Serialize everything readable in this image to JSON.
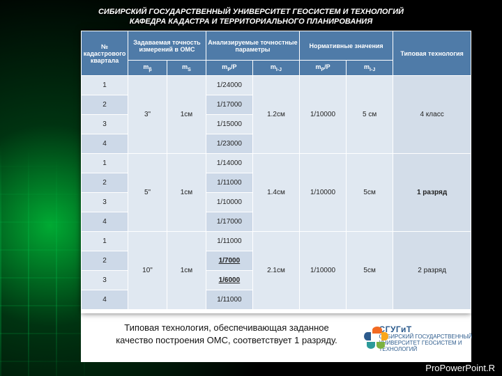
{
  "header": {
    "line1": "СИБИРСКИЙ ГОСУДАРСТВЕННЫЙ УНИВЕРСИТЕТ ГЕОСИСТЕМ И ТЕХНОЛОГИЙ",
    "line2": "КАФЕДРА КАДАСТРА И ТЕРРИТОРИАЛЬНОГО ПЛАНИРОВАНИЯ"
  },
  "table": {
    "head": {
      "c1": "№ кадастрового квартала",
      "c2": "Задаваемая точность измерений в ОМС",
      "c3": "Анализируемые точностные параметры",
      "c4": "Нормативные значения",
      "c5": "Типовая технология",
      "s1": "mβ",
      "s2": "mS",
      "s3": "mP/P",
      "s4": "mI-J",
      "s5": "mP/P",
      "s6": "mI-J"
    },
    "groups": [
      {
        "mb": "3\"",
        "ms": "1см",
        "mij": "1.2см",
        "np": "1/10000",
        "nij": "5 см",
        "tech": "4 класс",
        "tech_bold": false,
        "rows": [
          {
            "n": "1",
            "mp": "1/24000",
            "bold": false
          },
          {
            "n": "2",
            "mp": "1/17000",
            "bold": false
          },
          {
            "n": "3",
            "mp": "1/15000",
            "bold": false
          },
          {
            "n": "4",
            "mp": "1/23000",
            "bold": false
          }
        ]
      },
      {
        "mb": "5\"",
        "ms": "1см",
        "mij": "1.4см",
        "np": "1/10000",
        "nij": "5см",
        "tech": "1 разряд",
        "tech_bold": true,
        "rows": [
          {
            "n": "1",
            "mp": "1/14000",
            "bold": false
          },
          {
            "n": "2",
            "mp": "1/11000",
            "bold": false
          },
          {
            "n": "3",
            "mp": "1/10000",
            "bold": false
          },
          {
            "n": "4",
            "mp": "1/17000",
            "bold": false
          }
        ]
      },
      {
        "mb": "10\"",
        "ms": "1см",
        "mij": "2.1см",
        "np": "1/10000",
        "nij": "5см",
        "tech": "2 разряд",
        "tech_bold": false,
        "rows": [
          {
            "n": "1",
            "mp": "1/11000",
            "bold": false
          },
          {
            "n": "2",
            "mp": "1/7000",
            "bold": true
          },
          {
            "n": "3",
            "mp": "1/6000",
            "bold": true
          },
          {
            "n": "4",
            "mp": "1/11000",
            "bold": false
          }
        ]
      }
    ],
    "col_widths": [
      "12%",
      "10%",
      "10%",
      "12%",
      "12%",
      "12%",
      "12%",
      "20%"
    ],
    "colors": {
      "header_bg": "#4f7ba8",
      "odd_bg": "#e0e8f1",
      "even_bg": "#cdd9e8",
      "border": "#ffffff",
      "text": "#222222"
    }
  },
  "caption": "Типовая технология, обеспечивающая заданное качество построения ОМС, соответствует 1 разряду.",
  "logo": {
    "abbr": "СГУГиТ",
    "full": "СИБИРСКИЙ ГОСУДАРСТВЕННЫЙ УНИВЕРСИТЕТ ГЕОСИСТЕМ И ТЕХНОЛОГИЙ",
    "colors": [
      "#f26a21",
      "#f9a61a",
      "#7bb241",
      "#2c9a9a",
      "#2c5b8d"
    ]
  },
  "footer": "ProPowerPoint.R"
}
